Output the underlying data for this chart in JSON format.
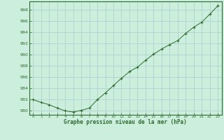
{
  "x": [
    0,
    1,
    2,
    3,
    4,
    5,
    6,
    7,
    8,
    9,
    10,
    11,
    12,
    13,
    14,
    15,
    16,
    17,
    18,
    19,
    20,
    21,
    22,
    23
  ],
  "y": [
    982.0,
    981.5,
    981.1,
    980.5,
    980.0,
    979.8,
    980.1,
    980.5,
    982.0,
    983.2,
    984.5,
    985.8,
    987.0,
    987.8,
    989.0,
    990.1,
    991.0,
    991.8,
    992.5,
    993.8,
    994.9,
    995.8,
    997.2,
    998.7
  ],
  "line_color": "#2d6a2d",
  "marker": "+",
  "background_color": "#cceedd",
  "grid_color": "#aacccc",
  "xlabel": "Graphe pression niveau de la mer (hPa)",
  "xlabel_color": "#2d6a2d",
  "ylabel_ticks": [
    980,
    982,
    984,
    986,
    988,
    990,
    992,
    994,
    996,
    998
  ],
  "ylim": [
    979.3,
    999.5
  ],
  "xlim": [
    -0.5,
    23.5
  ],
  "tick_color": "#2d6a2d",
  "tick_label_color": "#2d6a2d",
  "spine_color": "#2d6a2d"
}
